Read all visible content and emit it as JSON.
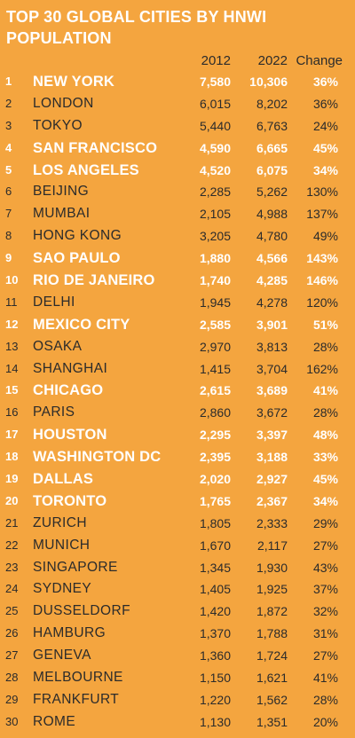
{
  "title": "TOP 30 GLOBAL CITIES BY HNWI POPULATION",
  "headers": {
    "y2012": "2012",
    "y2022": "2022",
    "change": "Change"
  },
  "colors": {
    "background": "#F4A53F",
    "highlight_text": "#FFFFFF",
    "regular_text": "#2B2B2B"
  },
  "chart_data": {
    "type": "table",
    "title": "TOP 30 GLOBAL CITIES BY HNWI POPULATION",
    "columns": [
      "",
      "",
      "2012",
      "2022",
      "Change"
    ],
    "rows": [
      {
        "rank": "1",
        "city": "NEW YORK",
        "v2012": "7,580",
        "v2022": "10,306",
        "change": "36%",
        "highlight": true
      },
      {
        "rank": "2",
        "city": "LONDON",
        "v2012": "6,015",
        "v2022": "8,202",
        "change": "36%",
        "highlight": false
      },
      {
        "rank": "3",
        "city": "TOKYO",
        "v2012": "5,440",
        "v2022": "6,763",
        "change": "24%",
        "highlight": false
      },
      {
        "rank": "4",
        "city": "SAN FRANCISCO",
        "v2012": "4,590",
        "v2022": "6,665",
        "change": "45%",
        "highlight": true
      },
      {
        "rank": "5",
        "city": "LOS ANGELES",
        "v2012": "4,520",
        "v2022": "6,075",
        "change": "34%",
        "highlight": true
      },
      {
        "rank": "6",
        "city": "BEIJING",
        "v2012": "2,285",
        "v2022": "5,262",
        "change": "130%",
        "highlight": false
      },
      {
        "rank": "7",
        "city": "MUMBAI",
        "v2012": "2,105",
        "v2022": "4,988",
        "change": "137%",
        "highlight": false
      },
      {
        "rank": "8",
        "city": "HONG KONG",
        "v2012": "3,205",
        "v2022": "4,780",
        "change": "49%",
        "highlight": false
      },
      {
        "rank": "9",
        "city": "SAO PAULO",
        "v2012": "1,880",
        "v2022": "4,566",
        "change": "143%",
        "highlight": true
      },
      {
        "rank": "10",
        "city": "RIO DE JANEIRO",
        "v2012": "1,740",
        "v2022": "4,285",
        "change": "146%",
        "highlight": true
      },
      {
        "rank": "11",
        "city": "DELHI",
        "v2012": "1,945",
        "v2022": "4,278",
        "change": "120%",
        "highlight": false
      },
      {
        "rank": "12",
        "city": "MEXICO CITY",
        "v2012": "2,585",
        "v2022": "3,901",
        "change": "51%",
        "highlight": true
      },
      {
        "rank": "13",
        "city": "OSAKA",
        "v2012": "2,970",
        "v2022": "3,813",
        "change": "28%",
        "highlight": false
      },
      {
        "rank": "14",
        "city": "SHANGHAI",
        "v2012": "1,415",
        "v2022": "3,704",
        "change": "162%",
        "highlight": false
      },
      {
        "rank": "15",
        "city": "CHICAGO",
        "v2012": "2,615",
        "v2022": "3,689",
        "change": "41%",
        "highlight": true
      },
      {
        "rank": "16",
        "city": "PARIS",
        "v2012": "2,860",
        "v2022": "3,672",
        "change": "28%",
        "highlight": false
      },
      {
        "rank": "17",
        "city": "HOUSTON",
        "v2012": "2,295",
        "v2022": "3,397",
        "change": "48%",
        "highlight": true
      },
      {
        "rank": "18",
        "city": "WASHINGTON DC",
        "v2012": "2,395",
        "v2022": "3,188",
        "change": "33%",
        "highlight": true
      },
      {
        "rank": "19",
        "city": "DALLAS",
        "v2012": "2,020",
        "v2022": "2,927",
        "change": "45%",
        "highlight": true
      },
      {
        "rank": "20",
        "city": "TORONTO",
        "v2012": "1,765",
        "v2022": "2,367",
        "change": "34%",
        "highlight": true
      },
      {
        "rank": "21",
        "city": "ZURICH",
        "v2012": "1,805",
        "v2022": "2,333",
        "change": "29%",
        "highlight": false
      },
      {
        "rank": "22",
        "city": "MUNICH",
        "v2012": "1,670",
        "v2022": "2,117",
        "change": "27%",
        "highlight": false
      },
      {
        "rank": "23",
        "city": "SINGAPORE",
        "v2012": "1,345",
        "v2022": "1,930",
        "change": "43%",
        "highlight": false
      },
      {
        "rank": "24",
        "city": "SYDNEY",
        "v2012": "1,405",
        "v2022": "1,925",
        "change": "37%",
        "highlight": false
      },
      {
        "rank": "25",
        "city": "DUSSELDORF",
        "v2012": "1,420",
        "v2022": "1,872",
        "change": "32%",
        "highlight": false
      },
      {
        "rank": "26",
        "city": "HAMBURG",
        "v2012": "1,370",
        "v2022": "1,788",
        "change": "31%",
        "highlight": false
      },
      {
        "rank": "27",
        "city": "GENEVA",
        "v2012": "1,360",
        "v2022": "1,724",
        "change": "27%",
        "highlight": false
      },
      {
        "rank": "28",
        "city": "MELBOURNE",
        "v2012": "1,150",
        "v2022": "1,621",
        "change": "41%",
        "highlight": false
      },
      {
        "rank": "29",
        "city": "FRANKFURT",
        "v2012": "1,220",
        "v2022": "1,562",
        "change": "28%",
        "highlight": false
      },
      {
        "rank": "30",
        "city": "ROME",
        "v2012": "1,130",
        "v2022": "1,351",
        "change": "20%",
        "highlight": false
      }
    ]
  }
}
